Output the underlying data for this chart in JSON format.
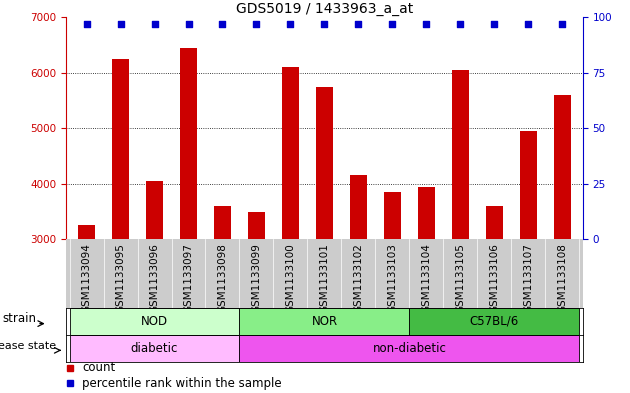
{
  "title": "GDS5019 / 1433963_a_at",
  "samples": [
    "GSM1133094",
    "GSM1133095",
    "GSM1133096",
    "GSM1133097",
    "GSM1133098",
    "GSM1133099",
    "GSM1133100",
    "GSM1133101",
    "GSM1133102",
    "GSM1133103",
    "GSM1133104",
    "GSM1133105",
    "GSM1133106",
    "GSM1133107",
    "GSM1133108"
  ],
  "counts": [
    3250,
    6250,
    4050,
    6450,
    3600,
    3500,
    6100,
    5750,
    4150,
    3850,
    3950,
    6050,
    3600,
    4950,
    5600
  ],
  "percentiles": [
    97,
    97,
    97,
    97,
    97,
    97,
    97,
    97,
    97,
    97,
    97,
    97,
    97,
    97,
    97
  ],
  "ylim_left": [
    3000,
    7000
  ],
  "ylim_right": [
    0,
    100
  ],
  "yticks_left": [
    3000,
    4000,
    5000,
    6000,
    7000
  ],
  "yticks_right": [
    0,
    25,
    50,
    75,
    100
  ],
  "bar_color": "#cc0000",
  "dot_color": "#0000cc",
  "strain_groups": [
    {
      "label": "NOD",
      "start": 0,
      "end": 4,
      "color": "#ccffcc"
    },
    {
      "label": "NOR",
      "start": 5,
      "end": 9,
      "color": "#88ee88"
    },
    {
      "label": "C57BL/6",
      "start": 10,
      "end": 14,
      "color": "#44bb44"
    }
  ],
  "disease_groups": [
    {
      "label": "diabetic",
      "start": 0,
      "end": 4,
      "color": "#ffbbff"
    },
    {
      "label": "non-diabetic",
      "start": 5,
      "end": 14,
      "color": "#ee55ee"
    }
  ],
  "strain_label": "strain",
  "disease_label": "disease state",
  "legend_count": "count",
  "legend_percentile": "percentile rank within the sample",
  "dotted_grid": [
    4000,
    5000,
    6000
  ],
  "background_color": "#ffffff",
  "xlim": [
    -0.6,
    14.6
  ],
  "axis_left_color": "#cc0000",
  "axis_right_color": "#0000cc",
  "title_fontsize": 10,
  "tick_fontsize": 7.5,
  "label_fontsize": 8.5,
  "bar_width": 0.5
}
